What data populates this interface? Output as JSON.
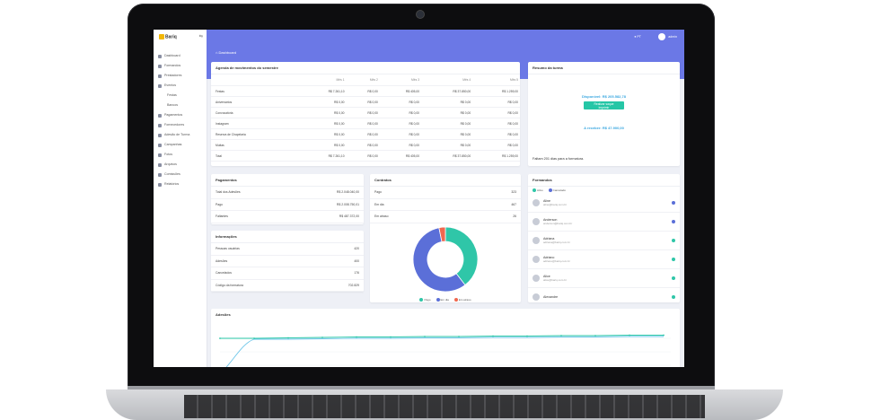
{
  "app": {
    "logo": "Bariq"
  },
  "sidebar": {
    "items": [
      {
        "label": "Dashboard",
        "sub": false
      },
      {
        "label": "Formandos",
        "sub": false
      },
      {
        "label": "Prestadores",
        "sub": false
      },
      {
        "label": "Eventos",
        "sub": false
      },
      {
        "label": "Festas",
        "sub": true
      },
      {
        "label": "Bancos",
        "sub": true
      },
      {
        "label": "Pagamentos",
        "sub": false
      },
      {
        "label": "Fornecedores",
        "sub": false
      },
      {
        "label": "Adesão de Turma",
        "sub": false
      },
      {
        "label": "Campanhas",
        "sub": false
      },
      {
        "label": "Fotos",
        "sub": false
      },
      {
        "label": "Arquivos",
        "sub": false
      },
      {
        "label": "Comissões",
        "sub": false
      },
      {
        "label": "Relatórios",
        "sub": false
      }
    ]
  },
  "topbar": {
    "breadcrumb": "Dashboard",
    "lang": "PT",
    "user": "admin"
  },
  "movements": {
    "title": "Agenda de movimentos do semestre",
    "headers": [
      "",
      "Mês 1",
      "Mês 2",
      "Mês 3",
      "Mês 4",
      "Mês 5"
    ],
    "rows": [
      [
        "Festas",
        "R$ 7.261,10",
        "R$ 0,00",
        "R$ 405,00",
        "R$ 37.850,00",
        "R$ 1.259,00"
      ],
      [
        "Aniversários",
        "R$ 0,00",
        "R$ 0,00",
        "R$ 0,00",
        "R$ 0,00",
        "R$ 0,00"
      ],
      [
        "Convocatória",
        "R$ 0,00",
        "R$ 0,00",
        "R$ 0,00",
        "R$ 0,00",
        "R$ 0,00"
      ],
      [
        "Instagram",
        "R$ 0,00",
        "R$ 0,00",
        "R$ 0,00",
        "R$ 0,00",
        "R$ 0,00"
      ],
      [
        "Reserva de Chapelaria",
        "R$ 0,00",
        "R$ 0,00",
        "R$ 0,00",
        "R$ 0,00",
        "R$ 0,00"
      ],
      [
        "Multas",
        "R$ 0,00",
        "R$ 0,00",
        "R$ 0,00",
        "R$ 0,00",
        "R$ 0,00"
      ],
      [
        "Total",
        "R$ 7.261,10",
        "R$ 0,00",
        "R$ 405,00",
        "R$ 37.850,00",
        "R$ 1.259,00"
      ]
    ]
  },
  "summary": {
    "title": "Resumo da turma",
    "available_label": "Disponível:",
    "available_value": "R$ 205.582,78",
    "button": "Realizar saque imprimir",
    "receive_label": "A receber:",
    "receive_value": "R$ 47.900,00",
    "days_text": "Faltam 201 dias para a formatura."
  },
  "payments": {
    "title": "Pagamentos",
    "rows": [
      [
        "Total dos Adesões",
        "R$ 2.048.040,00"
      ],
      [
        "Pago",
        "R$ 2.008.750,01"
      ],
      [
        "Faltantes",
        "R$ 487.372,00"
      ]
    ]
  },
  "info": {
    "title": "Informações",
    "rows": [
      [
        "Pessoas usuárias",
        "420"
      ],
      [
        "Adesões",
        "400"
      ],
      [
        "Cancelados",
        "176"
      ],
      [
        "Código da formatura",
        "702.829"
      ]
    ]
  },
  "contracts": {
    "title": "Contratos",
    "rows": [
      [
        "Pago",
        "323"
      ],
      [
        "Em dia",
        "467"
      ],
      [
        "Em atraso",
        "26"
      ]
    ],
    "legend": [
      "Pago",
      "Em dia",
      "Em atraso"
    ]
  },
  "chart_data": {
    "type": "pie",
    "categories": [
      "Pago",
      "Em dia",
      "Em atraso"
    ],
    "values": [
      323,
      467,
      26
    ],
    "colors": [
      "#2fc6a8",
      "#5b6fd8",
      "#f0674e"
    ]
  },
  "graduates": {
    "title": "Formandos",
    "legend": [
      "Ativo",
      "Cancelado"
    ],
    "users": [
      {
        "name": "Aline",
        "email": "aline@bariq.com.br",
        "status": "#5b6fd8"
      },
      {
        "name": "Anderson",
        "email": "anderson@bariq.com.br",
        "status": "#5b6fd8"
      },
      {
        "name": "Adriana",
        "email": "adriana@bariq.com.br",
        "status": "#2fc6a8"
      },
      {
        "name": "Adriano",
        "email": "adriano@bariq.com.br",
        "status": "#2fc6a8"
      },
      {
        "name": "Alice",
        "email": "alice@bariq.com.br",
        "status": "#2fc6a8"
      },
      {
        "name": "Alexandre",
        "email": "",
        "status": "#2fc6a8"
      }
    ]
  },
  "adesoes": {
    "title": "Adesões"
  }
}
